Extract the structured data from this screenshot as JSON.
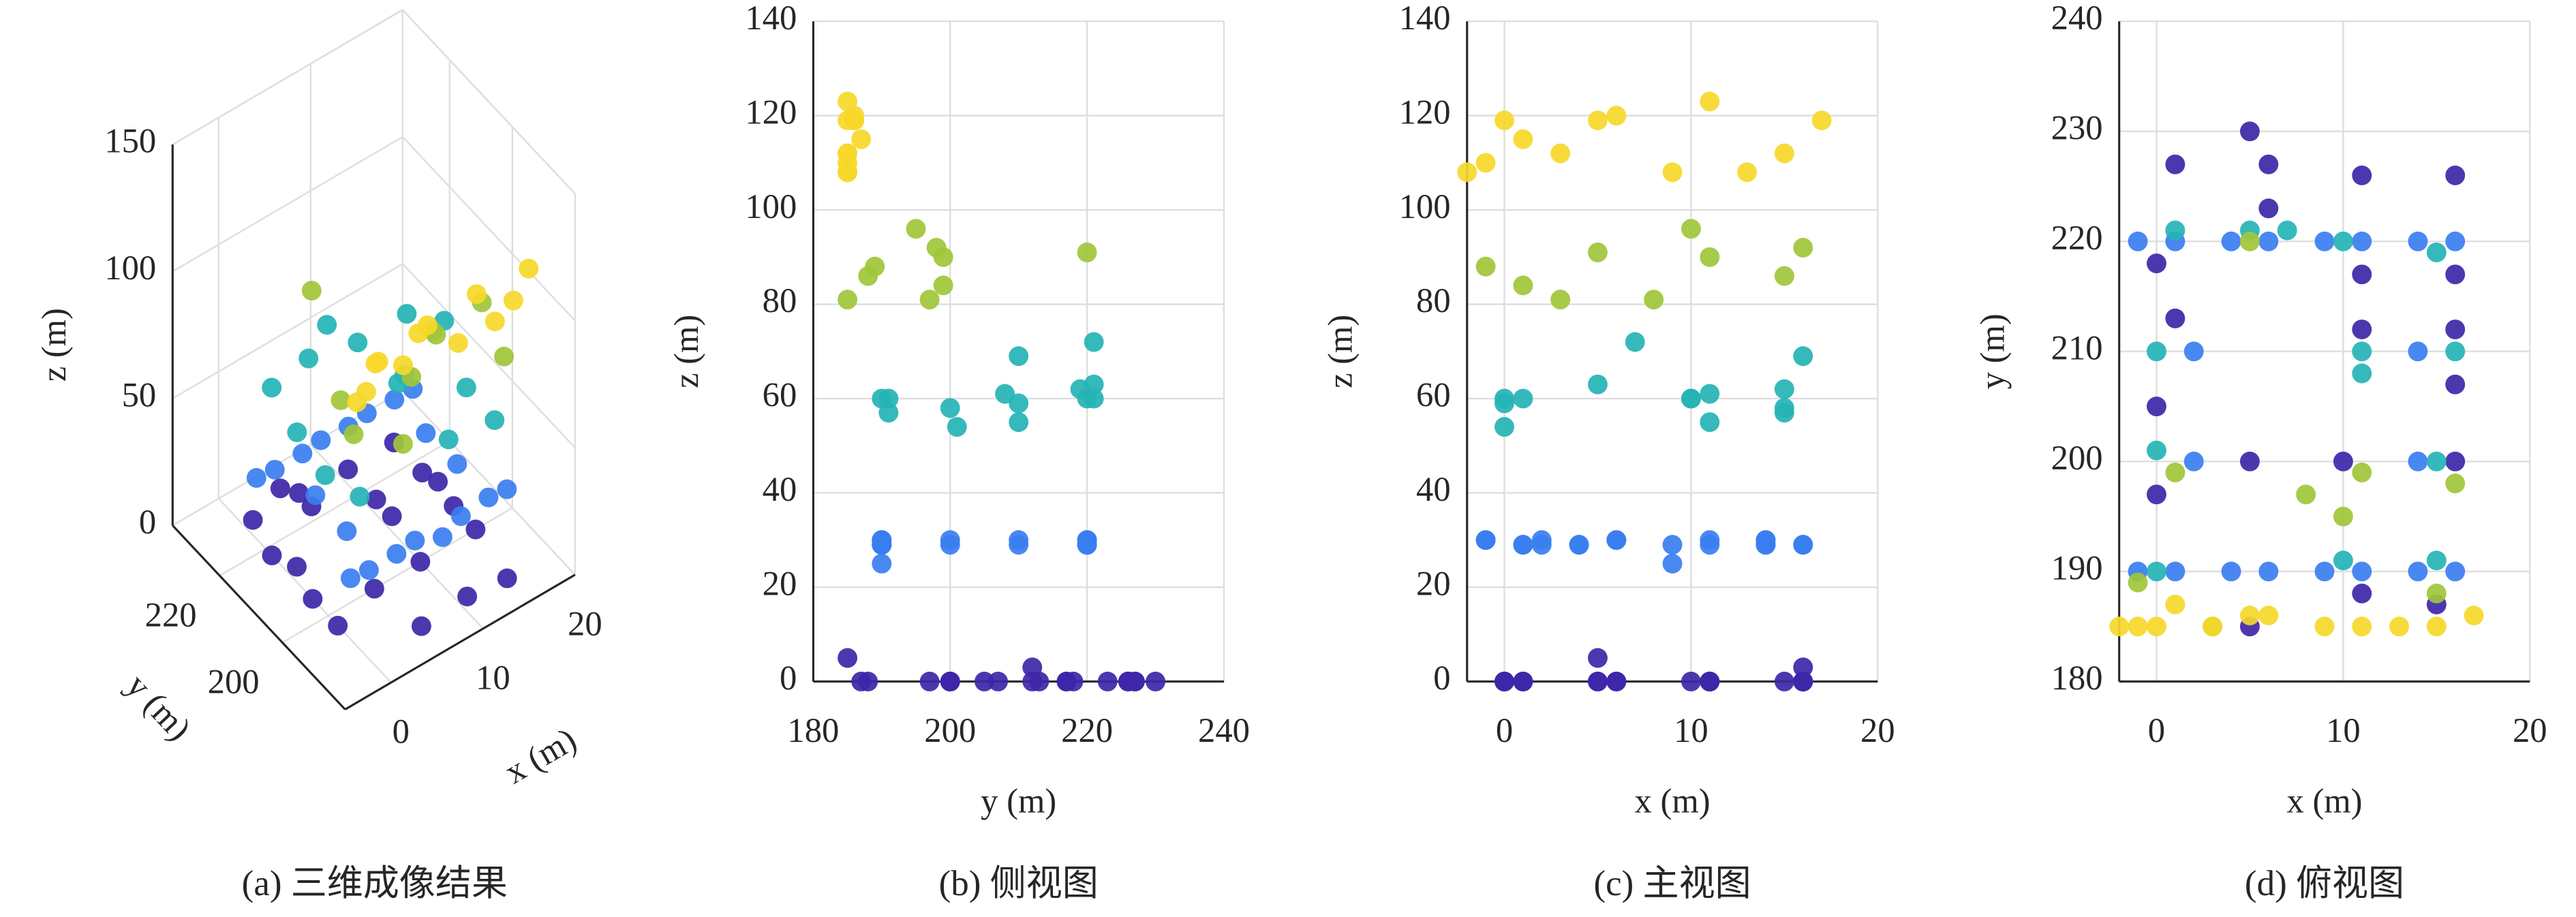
{
  "chart_data": [
    {
      "type": "scatter3d",
      "caption": "(a) 三维成像结果",
      "xlabel": "x (m)",
      "ylabel": "y (m)",
      "zlabel": "z (m)",
      "xlim": [
        -5,
        20
      ],
      "ylim": [
        180,
        235
      ],
      "zlim": [
        0,
        150
      ],
      "xticks": [
        0,
        10,
        20
      ],
      "yticks": [
        200,
        220
      ],
      "zticks": [
        0,
        50,
        100,
        150
      ],
      "grid": true,
      "series": [
        {
          "color": "#3e26a8",
          "x": [
            1,
            5,
            6,
            6,
            11,
            16,
            0,
            1,
            0,
            0,
            11,
            11,
            16,
            16,
            16,
            16,
            10,
            5,
            5,
            11,
            15
          ],
          "y": [
            227,
            230,
            227,
            223,
            226,
            226,
            218,
            213,
            205,
            197,
            217,
            212,
            217,
            212,
            207,
            200,
            200,
            200,
            185,
            188,
            187
          ],
          "z": [
            0,
            0,
            0,
            0,
            0,
            0,
            0,
            0,
            0,
            0,
            0,
            0,
            0,
            3,
            0,
            0,
            0,
            0,
            5,
            0,
            0
          ]
        },
        {
          "color": "#3a7ef0",
          "x": [
            -1,
            1,
            4,
            6,
            9,
            11,
            14,
            16,
            -1,
            1,
            4,
            6,
            9,
            11,
            14,
            16,
            2,
            14,
            2,
            14
          ],
          "y": [
            190,
            190,
            190,
            190,
            190,
            190,
            190,
            190,
            220,
            220,
            220,
            220,
            220,
            220,
            220,
            220,
            210,
            210,
            200,
            200
          ],
          "z": [
            30,
            29,
            29,
            30,
            25,
            29,
            30,
            29,
            30,
            29,
            29,
            30,
            29,
            30,
            29,
            29,
            30,
            29,
            29,
            30
          ]
        },
        {
          "color": "#25b3b5",
          "x": [
            0,
            0,
            1,
            5,
            10,
            15,
            16,
            15,
            11,
            0,
            10,
            15,
            7,
            11
          ],
          "y": [
            210,
            201,
            221,
            221,
            220,
            219,
            210,
            200,
            210,
            190,
            191,
            191,
            221,
            208
          ],
          "z": [
            59,
            54,
            60,
            63,
            60,
            62,
            69,
            58,
            55,
            60,
            60,
            57,
            72,
            61
          ]
        },
        {
          "color": "#9fc53a",
          "x": [
            -1,
            1,
            11,
            16,
            5,
            10,
            3,
            8,
            15
          ],
          "y": [
            189,
            199,
            199,
            198,
            220,
            195,
            185,
            197,
            188
          ],
          "z": [
            88,
            84,
            90,
            92,
            91,
            96,
            81,
            81,
            86
          ]
        },
        {
          "color": "#f6d82a",
          "x": [
            -1,
            0,
            3,
            5,
            9,
            11,
            15,
            17,
            13,
            1,
            6,
            -2
          ],
          "y": [
            185,
            185,
            185,
            186,
            185,
            185,
            185,
            186,
            185,
            187,
            186,
            185
          ],
          "z": [
            110,
            119,
            112,
            119,
            108,
            123,
            112,
            119,
            108,
            115,
            120,
            108
          ]
        }
      ]
    },
    {
      "type": "scatter",
      "caption": "(b) 侧视图",
      "xlabel": "y (m)",
      "ylabel": "z (m)",
      "xlim": [
        180,
        240
      ],
      "ylim": [
        0,
        140
      ],
      "xticks": [
        180,
        200,
        220,
        240
      ],
      "yticks": [
        0,
        20,
        40,
        60,
        80,
        100,
        120,
        140
      ],
      "grid": true,
      "series": [
        {
          "color": "#3e26a8",
          "x": [
            227,
            230,
            227,
            223,
            226,
            226,
            218,
            213,
            205,
            197,
            217,
            212,
            217,
            212,
            207,
            200,
            200,
            200,
            185,
            188,
            187
          ],
          "values": [
            0,
            0,
            0,
            0,
            0,
            0,
            0,
            0,
            0,
            0,
            0,
            0,
            0,
            3,
            0,
            0,
            0,
            0,
            5,
            0,
            0
          ]
        },
        {
          "color": "#3a7ef0",
          "x": [
            190,
            190,
            190,
            190,
            190,
            190,
            190,
            190,
            220,
            220,
            220,
            220,
            220,
            220,
            220,
            220,
            210,
            210,
            200,
            200
          ],
          "values": [
            30,
            29,
            29,
            30,
            25,
            29,
            30,
            29,
            30,
            29,
            29,
            30,
            29,
            30,
            29,
            29,
            30,
            29,
            29,
            30
          ]
        },
        {
          "color": "#25b3b5",
          "x": [
            210,
            201,
            221,
            221,
            220,
            219,
            210,
            200,
            210,
            190,
            191,
            191,
            221,
            208
          ],
          "values": [
            59,
            54,
            60,
            63,
            60,
            62,
            69,
            58,
            55,
            60,
            60,
            57,
            72,
            61
          ]
        },
        {
          "color": "#9fc53a",
          "x": [
            189,
            199,
            199,
            198,
            220,
            195,
            185,
            197,
            188
          ],
          "values": [
            88,
            84,
            90,
            92,
            91,
            96,
            81,
            81,
            86
          ]
        },
        {
          "color": "#f6d82a",
          "x": [
            185,
            185,
            185,
            186,
            185,
            185,
            185,
            186,
            185,
            187,
            186,
            185
          ],
          "values": [
            110,
            119,
            112,
            119,
            108,
            123,
            112,
            119,
            108,
            115,
            120,
            108
          ]
        }
      ]
    },
    {
      "type": "scatter",
      "caption": "(c) 主视图",
      "xlabel": "x (m)",
      "ylabel": "z (m)",
      "xlim": [
        -2,
        20
      ],
      "ylim": [
        0,
        140
      ],
      "xticks": [
        0,
        10,
        20
      ],
      "yticks": [
        0,
        20,
        40,
        60,
        80,
        100,
        120,
        140
      ],
      "grid": true,
      "series": [
        {
          "color": "#3e26a8",
          "x": [
            1,
            5,
            6,
            6,
            11,
            16,
            0,
            1,
            0,
            0,
            11,
            11,
            16,
            16,
            16,
            16,
            10,
            5,
            5,
            11,
            15
          ],
          "values": [
            0,
            0,
            0,
            0,
            0,
            0,
            0,
            0,
            0,
            0,
            0,
            0,
            0,
            3,
            0,
            0,
            0,
            0,
            5,
            0,
            0
          ]
        },
        {
          "color": "#3a7ef0",
          "x": [
            -1,
            1,
            4,
            6,
            9,
            11,
            14,
            16,
            -1,
            1,
            4,
            6,
            9,
            11,
            14,
            16,
            2,
            14,
            2,
            14
          ],
          "values": [
            30,
            29,
            29,
            30,
            25,
            29,
            30,
            29,
            30,
            29,
            29,
            30,
            29,
            30,
            29,
            29,
            30,
            29,
            29,
            30
          ]
        },
        {
          "color": "#25b3b5",
          "x": [
            0,
            0,
            1,
            5,
            10,
            15,
            16,
            15,
            11,
            0,
            10,
            15,
            7,
            11
          ],
          "values": [
            59,
            54,
            60,
            63,
            60,
            62,
            69,
            58,
            55,
            60,
            60,
            57,
            72,
            61
          ]
        },
        {
          "color": "#9fc53a",
          "x": [
            -1,
            1,
            11,
            16,
            5,
            10,
            3,
            8,
            15
          ],
          "values": [
            88,
            84,
            90,
            92,
            91,
            96,
            81,
            81,
            86
          ]
        },
        {
          "color": "#f6d82a",
          "x": [
            -1,
            0,
            3,
            5,
            9,
            11,
            15,
            17,
            13,
            1,
            6,
            -2
          ],
          "values": [
            110,
            119,
            112,
            119,
            108,
            123,
            112,
            119,
            108,
            115,
            120,
            108
          ]
        }
      ]
    },
    {
      "type": "scatter",
      "caption": "(d) 俯视图",
      "xlabel": "x (m)",
      "ylabel": "y (m)",
      "xlim": [
        -2,
        20
      ],
      "ylim": [
        180,
        240
      ],
      "xticks": [
        0,
        10,
        20
      ],
      "yticks": [
        180,
        190,
        200,
        210,
        220,
        230,
        240
      ],
      "grid": true,
      "series": [
        {
          "color": "#3e26a8",
          "x": [
            1,
            5,
            6,
            6,
            11,
            16,
            0,
            1,
            0,
            0,
            11,
            11,
            16,
            16,
            16,
            16,
            10,
            5,
            5,
            11,
            15
          ],
          "values": [
            227,
            230,
            227,
            223,
            226,
            226,
            218,
            213,
            205,
            197,
            217,
            212,
            217,
            212,
            207,
            200,
            200,
            200,
            185,
            188,
            187
          ]
        },
        {
          "color": "#3a7ef0",
          "x": [
            -1,
            1,
            4,
            6,
            9,
            11,
            14,
            16,
            -1,
            1,
            4,
            6,
            9,
            11,
            14,
            16,
            2,
            14,
            2,
            14
          ],
          "values": [
            190,
            190,
            190,
            190,
            190,
            190,
            190,
            190,
            220,
            220,
            220,
            220,
            220,
            220,
            220,
            220,
            210,
            210,
            200,
            200
          ]
        },
        {
          "color": "#25b3b5",
          "x": [
            0,
            0,
            1,
            5,
            10,
            15,
            16,
            15,
            11,
            0,
            10,
            15,
            7,
            11
          ],
          "values": [
            210,
            201,
            221,
            221,
            220,
            219,
            210,
            200,
            210,
            190,
            191,
            191,
            221,
            208
          ]
        },
        {
          "color": "#9fc53a",
          "x": [
            -1,
            1,
            11,
            16,
            5,
            10,
            3,
            8,
            15
          ],
          "values": [
            189,
            199,
            199,
            198,
            220,
            195,
            185,
            197,
            188
          ]
        },
        {
          "color": "#f6d82a",
          "x": [
            -1,
            0,
            3,
            5,
            9,
            11,
            15,
            17,
            13,
            1,
            6,
            -2
          ],
          "values": [
            185,
            185,
            185,
            186,
            185,
            185,
            185,
            186,
            185,
            187,
            186,
            185
          ]
        }
      ]
    }
  ]
}
